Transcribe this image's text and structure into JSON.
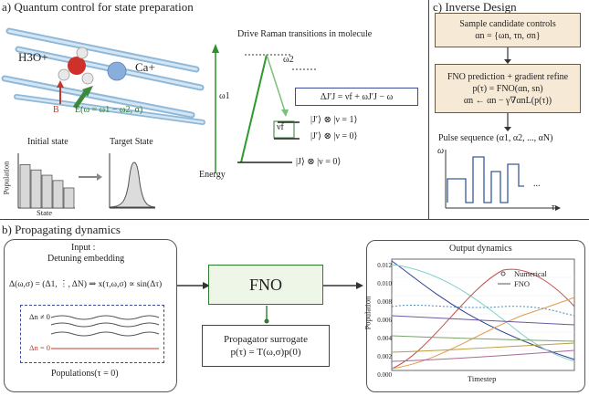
{
  "panel_a": {
    "title": "a) Quantum control for state preparation",
    "molecule_label": "H3O+",
    "ion_label": "Ca+",
    "b_field": "B",
    "e_field": "E(ω = ω1 − ω2, σ)",
    "initial_state": "Initial state",
    "target_state": "Target State",
    "y_axis": "Population",
    "x_axis": "State",
    "raman_title": "Drive Raman transitions in molecule",
    "omega1": "ω1",
    "omega2": "ω2",
    "energy": "Energy",
    "delta_eq": "ΔJ′J = νf + ωJ′J − ω",
    "nu_f": "νf",
    "level_top": "|J′⟩ ⊗ |ν = 1⟩",
    "level_mid": "|J′⟩ ⊗ |ν = 0⟩",
    "level_bottom": "|J⟩ ⊗ |ν = 0⟩",
    "initial_bars": [
      0.82,
      0.72,
      0.62,
      0.52,
      0.38
    ]
  },
  "panel_c": {
    "title": "c) Inverse Design",
    "box1_line1": "Sample candidate controls",
    "box1_line2": "αn = {ωn, τn, σn}",
    "box2_line1": "FNO prediction + gradient refine",
    "box2_line2": "p(τ) = FNO(αn, sn)",
    "box2_line3": "αn ← αn − γ∇αnL(p(τ))",
    "pulse_title": "Pulse sequence (α1, α2, ..., αN)",
    "omega_axis": "ω",
    "tau_axis": "τ",
    "dots": "..."
  },
  "panel_b": {
    "title": "b) Propagating dynamics",
    "input_title": "Input :",
    "detuning": "Detuning embedding",
    "embed_formula": "Δ(ω,σ) = (Δ1, ⋮, ΔN) ⇒ x(τ,ω,σ) ∝ sin(Δτ)",
    "delta_nonzero": "Δn ≠ 0",
    "delta_zero": "Δn = 0",
    "populations": "Populations(τ = 0)",
    "fno": "FNO",
    "prop_line1": "Propagator surrogate",
    "prop_line2": "p(τ) = T(ω,σ)p(0)",
    "output_title": "Output dynamics",
    "legend_numerical": "Numerical",
    "legend_fno": "FNO",
    "ylabel": "Population",
    "xlabel": "Timestep",
    "y_ticks": [
      "0.012",
      "0.010",
      "0.008",
      "0.006",
      "0.004",
      "0.002",
      "0.000"
    ]
  }
}
